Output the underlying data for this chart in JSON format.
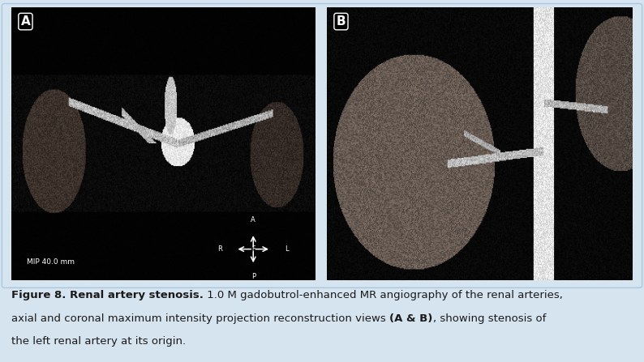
{
  "figure_width": 7.94,
  "figure_height": 4.47,
  "background_color": "#d6e4f0",
  "border_color": "#a8c8e0",
  "label_A": "A",
  "label_B": "B",
  "caption_bold1": "Figure 8. Renal artery stenosis.",
  "caption_normal1": " 1.0 M gadobutrol-enhanced MR angiography of the renal arteries,",
  "caption_line2_normal1": "axial and coronal maximum intensity projection reconstruction views ",
  "caption_line2_bold": "(A & B)",
  "caption_line2_normal2": ", showing stenosis of",
  "caption_line3": "the left renal artery at its origin.",
  "mip_label": "MIP 40.0 mm",
  "caption_fontsize": 9.5,
  "label_fontsize": 11,
  "caption_color": "#1a1a1a",
  "label_color": "#ffffff"
}
